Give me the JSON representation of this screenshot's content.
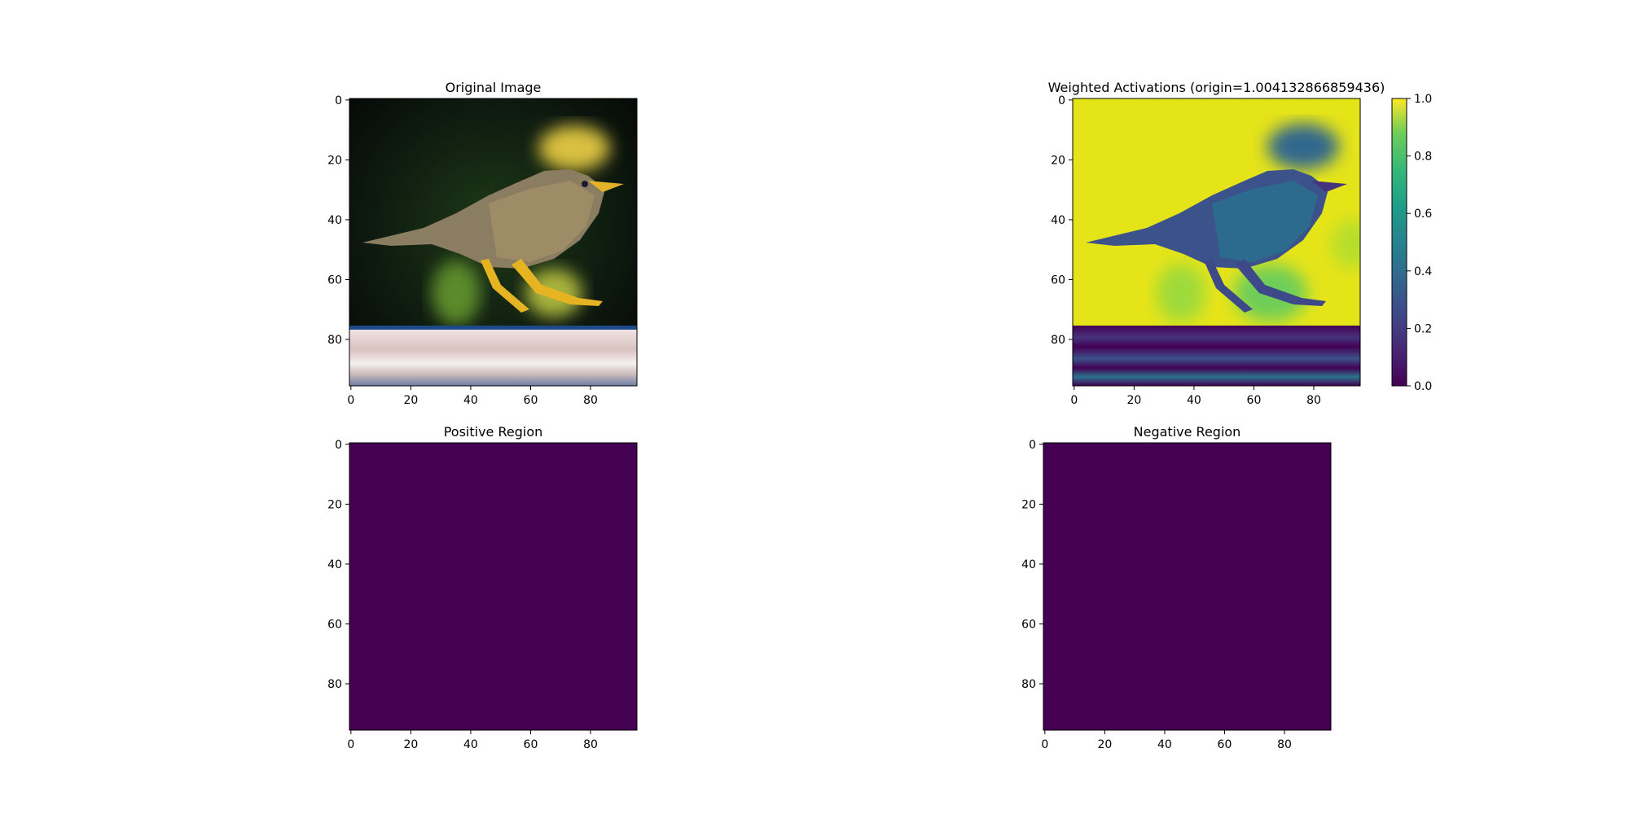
{
  "chart_data": [
    {
      "type": "image",
      "title": "Original Image",
      "content": "photo of a small brown speckled bird with yellow legs walking on a pale ledge, dark green blurred background",
      "x_range": [
        0,
        95
      ],
      "y_range": [
        0,
        95
      ],
      "xticks": [
        0,
        20,
        40,
        60,
        80
      ],
      "yticks": [
        0,
        20,
        40,
        60,
        80
      ],
      "colors": {
        "background_dark": "#0b120d",
        "bird": "#8a7a5c",
        "legs": "#e0b12a",
        "ledge": "#e6d6d6",
        "ledge_edge": "#1d4a8a",
        "blob": "#d8c040"
      }
    },
    {
      "type": "heatmap",
      "title": "Weighted Activations (origin=1.004132866859436)",
      "x_range": [
        0,
        95
      ],
      "y_range": [
        0,
        95
      ],
      "xticks": [
        0,
        20,
        40,
        60,
        80
      ],
      "yticks": [
        0,
        20,
        40,
        60,
        80
      ],
      "colormap": "viridis",
      "colorbar": {
        "min": 0.0,
        "max": 1.0,
        "ticks": [
          "0.0",
          "0.2",
          "0.4",
          "0.6",
          "0.8",
          "1.0"
        ]
      },
      "colors": {
        "high": "#e5e419",
        "mid_high": "#9fda3a",
        "mid": "#2a788e",
        "low": "#3b528b",
        "min": "#440154"
      }
    },
    {
      "type": "heatmap",
      "title": "Positive Region",
      "x_range": [
        0,
        95
      ],
      "y_range": [
        0,
        95
      ],
      "xticks": [
        0,
        20,
        40,
        60,
        80
      ],
      "yticks": [
        0,
        20,
        40,
        60,
        80
      ],
      "uniform_value": 0,
      "fill": "#440154"
    },
    {
      "type": "heatmap",
      "title": "Negative Region",
      "x_range": [
        0,
        95
      ],
      "y_range": [
        0,
        95
      ],
      "xticks": [
        0,
        20,
        40,
        60,
        80
      ],
      "yticks": [
        0,
        20,
        40,
        60,
        80
      ],
      "uniform_value": 0,
      "fill": "#440154"
    }
  ]
}
